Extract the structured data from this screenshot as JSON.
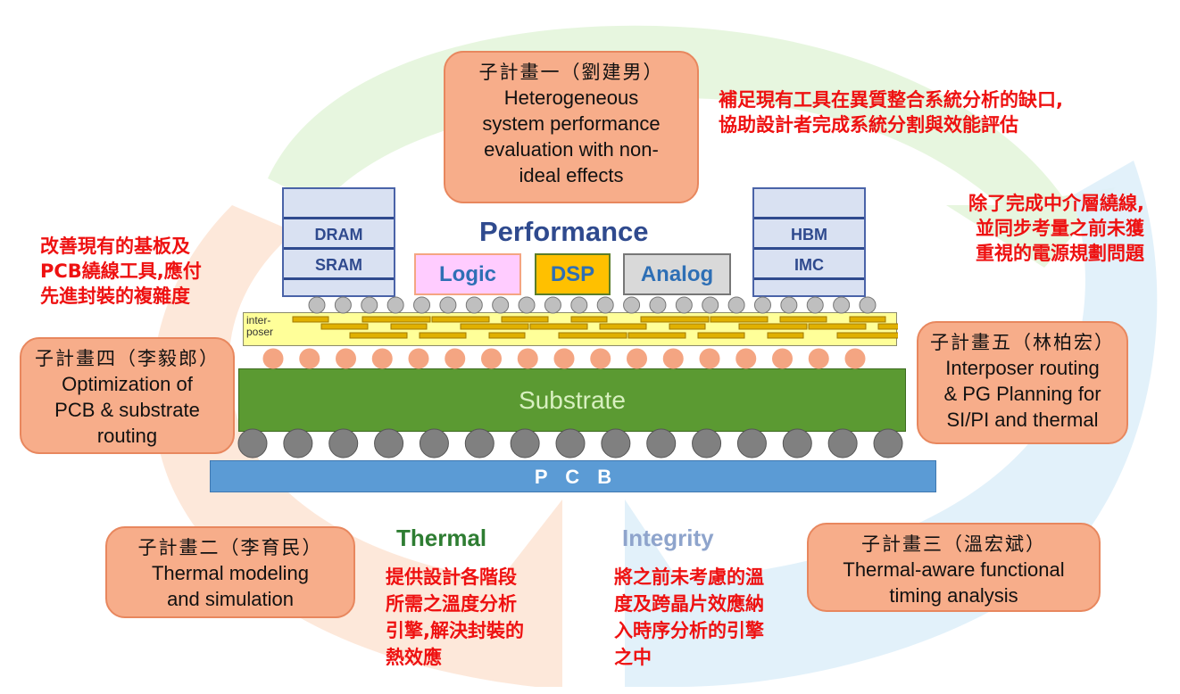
{
  "colors": {
    "box_fill": "#f7ad8a",
    "red_text": "#ee1111",
    "performance": "#2f4a8e",
    "thermal": "#2e7d32",
    "integrity": "#8ea4cc",
    "substrate": "#5b9a32",
    "pcb": "#5b9bd5",
    "interposer": "#ffff99"
  },
  "boxes": {
    "p1": {
      "zh": "子計畫一（劉建男）",
      "en": [
        "Heterogeneous",
        "system performance",
        "evaluation with non-",
        "ideal effects"
      ]
    },
    "p4": {
      "zh": "子計畫四（李毅郎）",
      "en": [
        "Optimization of",
        "PCB & substrate",
        "routing"
      ]
    },
    "p5": {
      "zh": "子計畫五（林柏宏）",
      "en": [
        "Interposer routing",
        "& PG Planning for",
        "SI/PI and thermal"
      ]
    },
    "p2": {
      "zh": "子計畫二（李育民）",
      "en": [
        "Thermal modeling",
        "and simulation"
      ]
    },
    "p3": {
      "zh": "子計畫三（溫宏斌）",
      "en": [
        "Thermal-aware functional",
        "timing analysis"
      ]
    }
  },
  "notes": {
    "top_right": [
      "補足現有工具在異質整合系統分析的缺口,",
      "協助設計者完成系統分割與效能評估"
    ],
    "right": [
      "除了完成中介層繞線,",
      "並同步考量之前未獲",
      "重視的電源規劃問題"
    ],
    "left": [
      "改善現有的基板及",
      "PCB繞線工具,應付",
      "先進封裝的複雜度"
    ],
    "thermal": [
      "提供設計各階段",
      "所需之溫度分析",
      "引擎,解決封裝的",
      "熱效應"
    ],
    "integrity": [
      "將之前未考慮的溫",
      "度及跨晶片效應納",
      "入時序分析的引擎",
      "之中"
    ]
  },
  "labels": {
    "performance": "Performance",
    "thermal": "Thermal",
    "integrity": "Integrity",
    "left_stack": [
      "DRAM",
      "SRAM"
    ],
    "right_stack": [
      "HBM",
      "IMC"
    ],
    "logic": "Logic",
    "dsp": "DSP",
    "analog": "Analog",
    "interposer": [
      "inter-",
      "poser"
    ],
    "substrate": "Substrate",
    "pcb": "P C B"
  }
}
